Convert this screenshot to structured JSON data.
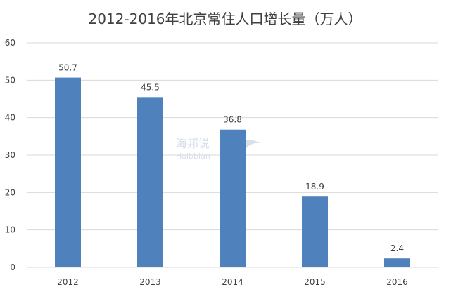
{
  "chart_data": {
    "type": "bar",
    "title": "2012-2016年北京常住人口增长量（万人）",
    "categories": [
      "2012",
      "2013",
      "2014",
      "2015",
      "2016"
    ],
    "values": [
      50.7,
      45.5,
      36.8,
      18.9,
      2.4
    ],
    "data_labels": [
      "50.7",
      "45.5",
      "36.8",
      "18.9",
      "2.4"
    ],
    "xlabel": "",
    "ylabel": "",
    "ylim": [
      0,
      60
    ],
    "yticks": [
      0,
      10,
      20,
      30,
      40,
      50,
      60
    ],
    "grid": true,
    "legend": "none",
    "bar_color": "#4f81bd",
    "grid_color": "#d9d9d9"
  },
  "watermark": {
    "text": "海邦说",
    "subtext": "Haibbian"
  }
}
